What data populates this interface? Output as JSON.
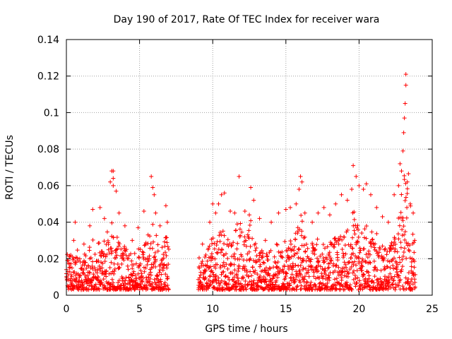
{
  "chart_data": {
    "type": "scatter",
    "title": "Day 190 of 2017, Rate Of TEC Index for receiver wara",
    "xlabel": "GPS time / hours",
    "ylabel": "ROTI / TECUs",
    "xlim": [
      0,
      25
    ],
    "ylim": [
      0,
      0.14
    ],
    "x_ticks": [
      0,
      5,
      10,
      15,
      20,
      25
    ],
    "y_ticks": [
      0,
      0.02,
      0.04,
      0.06,
      0.08,
      0.1,
      0.12,
      0.14
    ],
    "x_tick_labels": [
      "0",
      "5",
      "10",
      "15",
      "20",
      "25"
    ],
    "y_tick_labels": [
      "0",
      "0.02",
      "0.04",
      "0.06",
      "0.08",
      "0.1",
      "0.12",
      "0.14"
    ],
    "grid": true,
    "marker": "+",
    "marker_color": "#ff0000",
    "data_gap_hours": [
      7.0,
      9.0
    ],
    "series": [
      {
        "name": "ROTI",
        "points": [
          [
            0.0,
            0.014
          ],
          [
            0.3,
            0.022
          ],
          [
            0.5,
            0.03
          ],
          [
            0.6,
            0.04
          ],
          [
            1.2,
            0.028
          ],
          [
            1.6,
            0.038
          ],
          [
            1.8,
            0.047
          ],
          [
            2.3,
            0.048
          ],
          [
            2.6,
            0.042
          ],
          [
            3.0,
            0.062
          ],
          [
            3.1,
            0.068
          ],
          [
            3.2,
            0.068
          ],
          [
            3.2,
            0.064
          ],
          [
            3.2,
            0.06
          ],
          [
            3.4,
            0.057
          ],
          [
            3.6,
            0.045
          ],
          [
            4.0,
            0.038
          ],
          [
            4.5,
            0.03
          ],
          [
            4.9,
            0.037
          ],
          [
            5.3,
            0.046
          ],
          [
            5.8,
            0.065
          ],
          [
            5.9,
            0.059
          ],
          [
            6.0,
            0.055
          ],
          [
            6.1,
            0.045
          ],
          [
            6.4,
            0.038
          ],
          [
            6.8,
            0.049
          ],
          [
            6.9,
            0.04
          ],
          [
            9.3,
            0.028
          ],
          [
            9.8,
            0.04
          ],
          [
            10.0,
            0.05
          ],
          [
            10.2,
            0.045
          ],
          [
            10.4,
            0.05
          ],
          [
            10.6,
            0.055
          ],
          [
            10.8,
            0.056
          ],
          [
            11.2,
            0.046
          ],
          [
            11.5,
            0.045
          ],
          [
            11.8,
            0.065
          ],
          [
            12.2,
            0.046
          ],
          [
            12.5,
            0.044
          ],
          [
            12.6,
            0.059
          ],
          [
            12.8,
            0.052
          ],
          [
            13.2,
            0.042
          ],
          [
            13.6,
            0.03
          ],
          [
            14.0,
            0.04
          ],
          [
            14.5,
            0.045
          ],
          [
            15.0,
            0.047
          ],
          [
            15.3,
            0.048
          ],
          [
            15.7,
            0.05
          ],
          [
            15.9,
            0.058
          ],
          [
            16.0,
            0.065
          ],
          [
            16.1,
            0.062
          ],
          [
            16.3,
            0.045
          ],
          [
            16.8,
            0.04
          ],
          [
            17.2,
            0.045
          ],
          [
            17.6,
            0.048
          ],
          [
            18.0,
            0.044
          ],
          [
            18.4,
            0.05
          ],
          [
            18.8,
            0.055
          ],
          [
            19.2,
            0.052
          ],
          [
            19.5,
            0.058
          ],
          [
            19.6,
            0.071
          ],
          [
            19.8,
            0.065
          ],
          [
            20.0,
            0.06
          ],
          [
            20.3,
            0.058
          ],
          [
            20.5,
            0.061
          ],
          [
            20.8,
            0.055
          ],
          [
            21.2,
            0.048
          ],
          [
            21.6,
            0.043
          ],
          [
            22.0,
            0.04
          ],
          [
            22.4,
            0.055
          ],
          [
            22.7,
            0.06
          ],
          [
            22.8,
            0.072
          ],
          [
            22.9,
            0.068
          ],
          [
            23.0,
            0.079
          ],
          [
            23.05,
            0.089
          ],
          [
            23.1,
            0.097
          ],
          [
            23.15,
            0.105
          ],
          [
            23.2,
            0.115
          ],
          [
            23.2,
            0.121
          ],
          [
            23.3,
            0.062
          ],
          [
            23.5,
            0.05
          ],
          [
            23.7,
            0.045
          ],
          [
            23.8,
            0.03
          ]
        ]
      }
    ]
  }
}
